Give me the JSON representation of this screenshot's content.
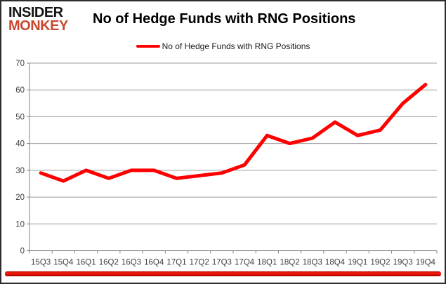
{
  "header": {
    "logo_line1": "INSIDER",
    "logo_line2": "MONKEY",
    "title": "No of Hedge Funds with RNG Positions"
  },
  "legend": {
    "label": "No of Hedge Funds with RNG Positions"
  },
  "chart_data": {
    "type": "line",
    "title": "No of Hedge Funds with RNG Positions",
    "categories": [
      "15Q3",
      "15Q4",
      "16Q1",
      "16Q2",
      "16Q3",
      "16Q4",
      "17Q1",
      "17Q2",
      "17Q3",
      "17Q4",
      "18Q1",
      "18Q2",
      "18Q3",
      "18Q4",
      "19Q1",
      "19Q2",
      "19Q3",
      "19Q4"
    ],
    "series": [
      {
        "name": "No of Hedge Funds with RNG Positions",
        "values": [
          29,
          26,
          30,
          27,
          30,
          30,
          27,
          28,
          29,
          32,
          43,
          40,
          42,
          48,
          43,
          45,
          55,
          62
        ]
      }
    ],
    "ylim": [
      0,
      70
    ],
    "ytick_step": 10,
    "grid": true,
    "legend_position": "top-center",
    "xlabel": "",
    "ylabel": ""
  },
  "colors": {
    "line_red": "#FF0000",
    "logo_red": "#C9472F",
    "gridline_gray": "#9C9C9C",
    "axis_line_gray": "#808080",
    "axis_text": "#3F3F3F",
    "accent_bar_red": "#E00D00",
    "frame_border": "#2E2B2B"
  }
}
